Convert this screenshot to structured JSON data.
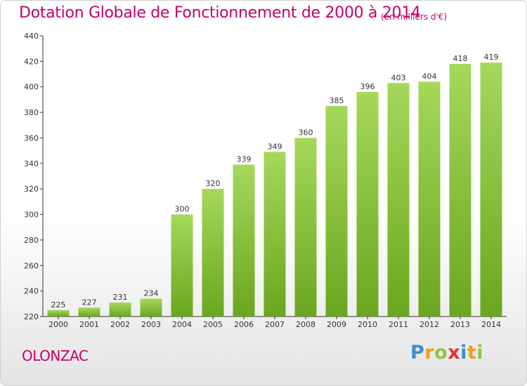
{
  "chart_data": {
    "type": "bar",
    "title": "Dotation Globale de Fonctionnement de 2000 à 2014",
    "subtitle": "(en milliers d'€)",
    "categories": [
      "2000",
      "2001",
      "2002",
      "2003",
      "2004",
      "2005",
      "2006",
      "2007",
      "2008",
      "2009",
      "2010",
      "2011",
      "2012",
      "2013",
      "2014"
    ],
    "values": [
      225,
      227,
      231,
      234,
      300,
      320,
      339,
      349,
      360,
      385,
      396,
      403,
      404,
      418,
      419
    ],
    "xlabel": "",
    "ylabel": "",
    "ylim": [
      220,
      440
    ],
    "yticks": [
      220,
      240,
      260,
      280,
      300,
      320,
      340,
      360,
      380,
      400,
      420,
      440
    ],
    "grid": false,
    "bar_color_top": "#a6d85a",
    "bar_color_bottom": "#6aa620"
  },
  "footer": {
    "city": "OLONZAC",
    "logo_letters": [
      "P",
      "r",
      "o",
      "x",
      "i",
      "t",
      "i"
    ],
    "logo_colors": [
      "#3a8fd6",
      "#f39a1e",
      "#8cc63f",
      "#e5322d",
      "#3a8fd6",
      "#f39a1e",
      "#8cc63f"
    ]
  },
  "colors": {
    "title": "#c4006c",
    "axis": "#333333"
  }
}
